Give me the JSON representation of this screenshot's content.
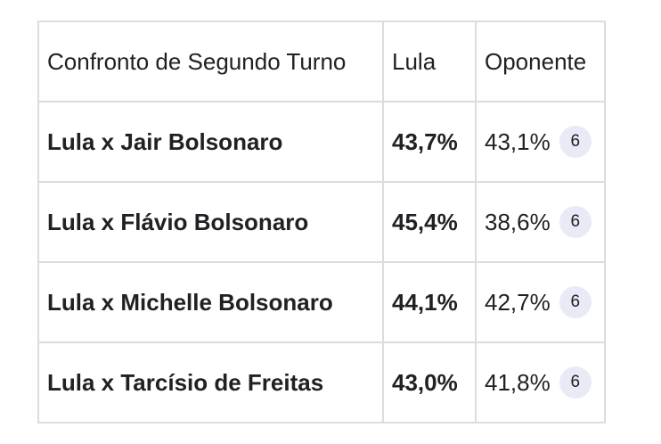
{
  "table": {
    "headers": [
      "Confronto de Segundo Turno",
      "Lula",
      "Oponente"
    ],
    "rows": [
      {
        "matchup": "Lula x Jair Bolsonaro",
        "lula": "43,7%",
        "opponent": "43,1%",
        "source": "6"
      },
      {
        "matchup": "Lula x Flávio Bolsonaro",
        "lula": "45,4%",
        "opponent": "38,6%",
        "source": "6"
      },
      {
        "matchup": "Lula x Michelle Bolsonaro",
        "lula": "44,1%",
        "opponent": "42,7%",
        "source": "6"
      },
      {
        "matchup": "Lula x Tarcísio de Freitas",
        "lula": "43,0%",
        "opponent": "41,8%",
        "source": "6"
      }
    ]
  },
  "colors": {
    "border": "#dadce0",
    "badge_bg": "#e8eaf6",
    "text": "#202124"
  }
}
